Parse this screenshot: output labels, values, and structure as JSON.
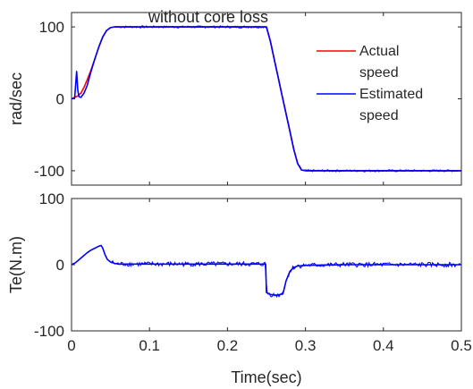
{
  "chart_data": [
    {
      "type": "line",
      "title": "without core loss",
      "xlabel": "",
      "ylabel": "rad/sec",
      "xlim": [
        0,
        0.5
      ],
      "ylim": [
        -120,
        120
      ],
      "yticks": [
        -100,
        0,
        100
      ],
      "xticks": [
        0,
        0.1,
        0.2,
        0.3,
        0.4,
        0.5
      ],
      "show_xtick_labels": false,
      "grid": false,
      "legend": {
        "placement": "top-right",
        "entries": [
          "Actual speed",
          "Estimated speed"
        ]
      },
      "series": [
        {
          "name": "Actual speed",
          "color": "#ff0000",
          "x": [
            0,
            0.004,
            0.008,
            0.012,
            0.016,
            0.02,
            0.025,
            0.03,
            0.035,
            0.04,
            0.045,
            0.05,
            0.055,
            0.06,
            0.07,
            0.08,
            0.1,
            0.15,
            0.2,
            0.25,
            0.255,
            0.26,
            0.265,
            0.27,
            0.275,
            0.28,
            0.285,
            0.29,
            0.295,
            0.3,
            0.35,
            0.4,
            0.45,
            0.5
          ],
          "y": [
            0,
            2,
            4,
            8,
            16,
            26,
            40,
            56,
            72,
            86,
            95,
            99,
            100,
            100,
            100,
            100,
            100,
            100,
            100,
            100,
            80,
            55,
            30,
            5,
            -20,
            -45,
            -70,
            -90,
            -99,
            -100,
            -100,
            -100,
            -100,
            -100
          ]
        },
        {
          "name": "Estimated speed",
          "color": "#0000ff",
          "x": [
            0,
            0.004,
            0.0065,
            0.008,
            0.0095,
            0.012,
            0.016,
            0.02,
            0.025,
            0.03,
            0.035,
            0.04,
            0.045,
            0.05,
            0.055,
            0.06,
            0.07,
            0.08,
            0.1,
            0.15,
            0.2,
            0.25,
            0.255,
            0.26,
            0.265,
            0.27,
            0.275,
            0.28,
            0.285,
            0.29,
            0.295,
            0.3,
            0.35,
            0.4,
            0.45,
            0.5
          ],
          "y": [
            0,
            1,
            38,
            12,
            3,
            2,
            8,
            18,
            38,
            56,
            72,
            86,
            95,
            99,
            100,
            100,
            100,
            100,
            100,
            100,
            100,
            100,
            80,
            55,
            30,
            5,
            -20,
            -45,
            -70,
            -90,
            -99,
            -100,
            -100,
            -100,
            -100,
            -100
          ]
        }
      ]
    },
    {
      "type": "line",
      "title": "",
      "xlabel": "Time(sec)",
      "ylabel": "Te(N.m)",
      "xlim": [
        0,
        0.5
      ],
      "ylim": [
        -100,
        100
      ],
      "yticks": [
        -100,
        0,
        100
      ],
      "xticks": [
        0,
        0.1,
        0.2,
        0.3,
        0.4,
        0.5
      ],
      "show_xtick_labels": true,
      "grid": false,
      "series": [
        {
          "color": "#0000ff",
          "x": [
            0,
            0.005,
            0.01,
            0.015,
            0.02,
            0.025,
            0.03,
            0.035,
            0.038,
            0.04,
            0.043,
            0.046,
            0.05,
            0.055,
            0.06,
            0.1,
            0.15,
            0.2,
            0.249,
            0.25,
            0.255,
            0.26,
            0.265,
            0.27,
            0.272,
            0.275,
            0.28,
            0.285,
            0.29,
            0.3,
            0.35,
            0.4,
            0.45,
            0.5
          ],
          "y": [
            0,
            3,
            8,
            13,
            18,
            22,
            25,
            28,
            29,
            25,
            15,
            8,
            4,
            2,
            1,
            1,
            1,
            1,
            1,
            -42,
            -45,
            -46,
            -46,
            -44,
            -40,
            -25,
            -10,
            -4,
            -2,
            -1,
            0,
            0,
            0,
            0
          ]
        }
      ]
    }
  ]
}
